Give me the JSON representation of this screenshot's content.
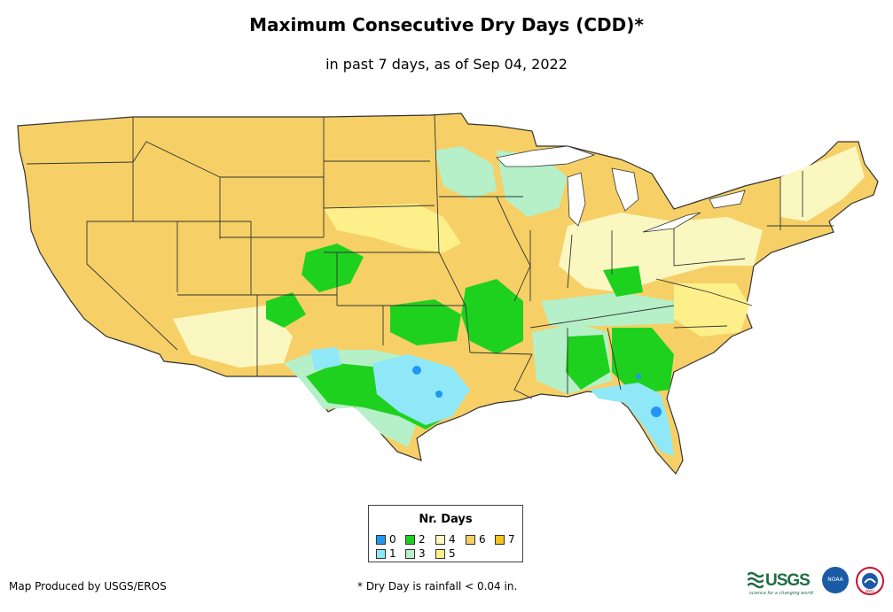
{
  "title": "Maximum Consecutive Dry Days (CDD)*",
  "subtitle": "in past 7 days, as of Sep 04, 2022",
  "legend": {
    "title": "Nr. Days",
    "items": [
      {
        "label": "0",
        "color": "#2196f3"
      },
      {
        "label": "1",
        "color": "#8fe8f7"
      },
      {
        "label": "2",
        "color": "#1fd11f"
      },
      {
        "label": "3",
        "color": "#b5f0c8"
      },
      {
        "label": "4",
        "color": "#fbf7c1"
      },
      {
        "label": "5",
        "color": "#fdf08a"
      },
      {
        "label": "6",
        "color": "#f6d066"
      },
      {
        "label": "7",
        "color": "#f7c21b"
      }
    ]
  },
  "footer": {
    "credit": "Map Produced by USGS/EROS",
    "footnote": "* Dry Day is rainfall < 0.04 in."
  },
  "logos": {
    "usgs": "USGS",
    "usgs_tagline": "science for a changing world",
    "noaa": "NOAA",
    "nws": "NWS"
  }
}
